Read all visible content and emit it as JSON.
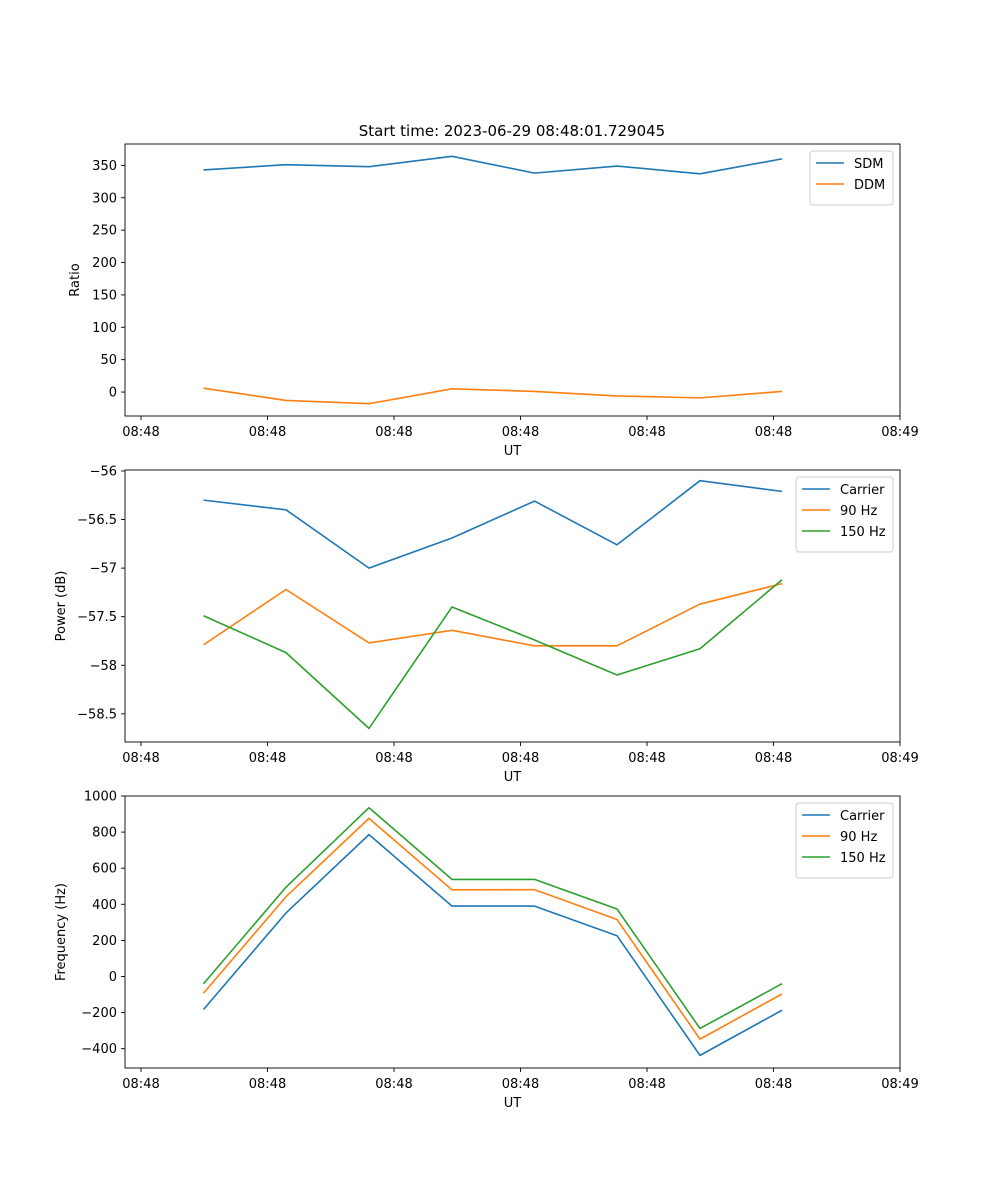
{
  "figure": {
    "title": "Start time: 2023-06-29 08:48:01.729045"
  },
  "colors": {
    "series_1": "#1f77b4",
    "series_2": "#ff7f0e",
    "series_3": "#2ca02c"
  },
  "chart_data": [
    {
      "type": "line",
      "title": "Start time: 2023-06-29 08:48:01.729045",
      "xlabel": "UT",
      "ylabel": "Ratio",
      "x_ticks": [
        "08:48",
        "08:48",
        "08:48",
        "08:48",
        "08:48",
        "08:48",
        "08:49"
      ],
      "y_ticks": [
        0,
        50,
        100,
        150,
        200,
        250,
        300,
        350
      ],
      "ylim": [
        -37,
        383
      ],
      "legend": "top-right",
      "grid": false,
      "series": [
        {
          "name": "SDM",
          "values": [
            343,
            351,
            348,
            364,
            338,
            349,
            337,
            360
          ]
        },
        {
          "name": "DDM",
          "values": [
            6,
            -13,
            -18,
            5,
            1,
            -6,
            -9,
            1
          ]
        }
      ]
    },
    {
      "type": "line",
      "title": "",
      "xlabel": "UT",
      "ylabel": "Power (dB)",
      "x_ticks": [
        "08:48",
        "08:48",
        "08:48",
        "08:48",
        "08:48",
        "08:48",
        "08:49"
      ],
      "y_ticks": [
        -56.0,
        -56.5,
        -57.0,
        -57.5,
        -58.0,
        -58.5
      ],
      "ylim": [
        -58.79,
        -55.99
      ],
      "legend": "top-right",
      "grid": false,
      "series": [
        {
          "name": "Carrier",
          "values": [
            -56.3,
            -56.4,
            -57.0,
            -56.69,
            -56.31,
            -56.76,
            -56.1,
            -56.21
          ]
        },
        {
          "name": "90 Hz",
          "values": [
            -57.79,
            -57.22,
            -57.77,
            -57.64,
            -57.8,
            -57.8,
            -57.37,
            -57.16
          ]
        },
        {
          "name": "150 Hz",
          "values": [
            -57.49,
            -57.87,
            -58.65,
            -57.4,
            -57.74,
            -58.1,
            -57.83,
            -57.12
          ]
        }
      ]
    },
    {
      "type": "line",
      "title": "",
      "xlabel": "UT",
      "ylabel": "Frequency (Hz)",
      "x_ticks": [
        "08:48",
        "08:48",
        "08:48",
        "08:48",
        "08:48",
        "08:48",
        "08:49"
      ],
      "y_ticks": [
        -400,
        -200,
        0,
        200,
        400,
        600,
        800,
        1000
      ],
      "ylim": [
        -507,
        1000
      ],
      "legend": "top-right",
      "grid": false,
      "series": [
        {
          "name": "Carrier",
          "values": [
            -183,
            352,
            786,
            390,
            390,
            226,
            -437,
            -187
          ]
        },
        {
          "name": "90 Hz",
          "values": [
            -93,
            442,
            876,
            480,
            481,
            316,
            -347,
            -97
          ]
        },
        {
          "name": "150 Hz",
          "values": [
            -40,
            495,
            935,
            538,
            538,
            374,
            -288,
            -40
          ]
        }
      ]
    }
  ]
}
